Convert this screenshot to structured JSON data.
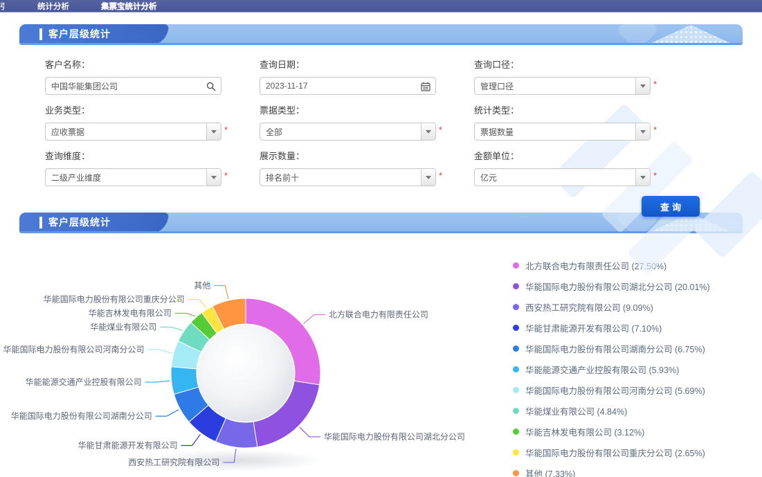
{
  "nav": {
    "clipped_item": "引",
    "items": [
      {
        "label": "统计分析"
      },
      {
        "label": "集票宝统计分析"
      }
    ]
  },
  "panels": {
    "filter_title": "客户层级统计",
    "result_title": "客户层级统计"
  },
  "form": {
    "required_mark": "*",
    "submit_label": "查询",
    "fields": [
      {
        "label": "客户名称：",
        "value": "中国华能集团公司",
        "type": "search",
        "required": false
      },
      {
        "label": "查询日期：",
        "value": "2023-11-17",
        "type": "date",
        "required": false
      },
      {
        "label": "查询口径：",
        "value": "管理口径",
        "type": "select",
        "required": true
      },
      {
        "label": "业务类型：",
        "value": "应收票据",
        "type": "select",
        "required": true
      },
      {
        "label": "票据类型：",
        "value": "全部",
        "type": "select",
        "required": true
      },
      {
        "label": "统计类型：",
        "value": "票据数量",
        "type": "select",
        "required": true
      },
      {
        "label": "查询维度：",
        "value": "二级产业维度",
        "type": "select",
        "required": true
      },
      {
        "label": "展示数量：",
        "value": "排名前十",
        "type": "select",
        "required": true
      },
      {
        "label": "金额单位：",
        "value": "亿元",
        "type": "select",
        "required": true
      }
    ]
  },
  "chart_data": {
    "type": "pie",
    "donut": true,
    "title": "客户层级统计",
    "unit": "%",
    "legend_position": "right",
    "series": [
      {
        "name": "北方联合电力有限责任公司",
        "value": 27.5,
        "color": "#E06CE8"
      },
      {
        "name": "华能国际电力股份有限公司湖北分公司",
        "value": 20.01,
        "color": "#8F52E0"
      },
      {
        "name": "西安热工研究院有限公司",
        "value": 9.09,
        "color": "#7668E8"
      },
      {
        "name": "华能甘肃能源开发有限公司",
        "value": 7.1,
        "color": "#2A3EDF"
      },
      {
        "name": "华能国际电力股份有限公司湖南分公司",
        "value": 6.75,
        "color": "#2E7BE8"
      },
      {
        "name": "华能能源交通产业控股有限公司",
        "value": 5.93,
        "color": "#35B5F2"
      },
      {
        "name": "华能国际电力股份有限公司河南分公司",
        "value": 5.69,
        "color": "#A5EBF5"
      },
      {
        "name": "华能煤业有限公司",
        "value": 4.84,
        "color": "#6FDCC2"
      },
      {
        "name": "华能吉林发电有限公司",
        "value": 3.12,
        "color": "#55CC33"
      },
      {
        "name": "华能国际电力股份有限公司重庆分公司",
        "value": 2.65,
        "color": "#FFE33E"
      },
      {
        "name": "其他",
        "value": 7.33,
        "color": "#FF9540"
      }
    ]
  },
  "colors": {
    "navbar": "#46569a",
    "banner": "#8db8ec",
    "banner_chip": "#3a67c4",
    "accent": "#1a64d6",
    "required": "#e23b3b"
  }
}
